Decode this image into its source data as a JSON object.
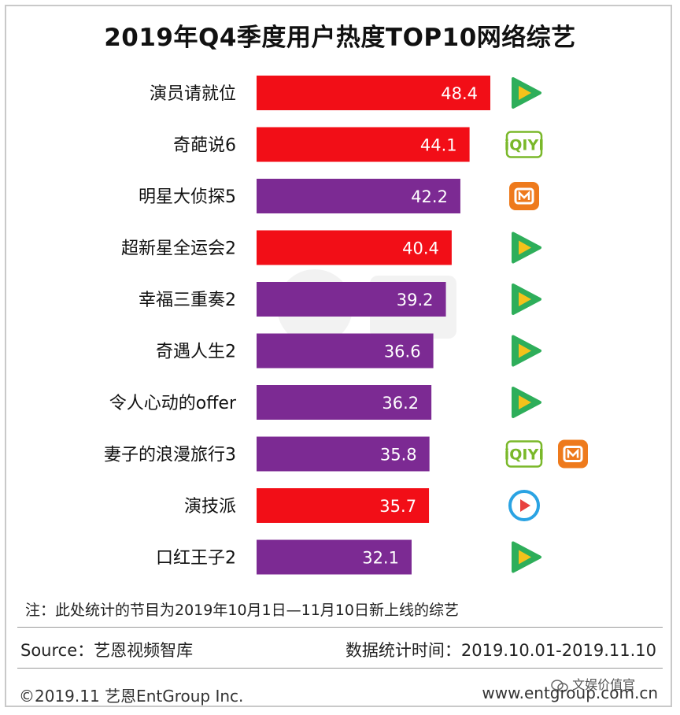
{
  "chart_data": {
    "type": "bar",
    "orientation": "horizontal",
    "title": "2019年Q4季度用户热度TOP10网络综艺",
    "categories": [
      "演员请就位",
      "奇葩说6",
      "明星大侦探5",
      "超新星全运会2",
      "幸福三重奏2",
      "奇遇人生2",
      "令人心动的offer",
      "妻子的浪漫旅行3",
      "演技派",
      "口红王子2"
    ],
    "values": [
      48.4,
      44.1,
      42.2,
      40.4,
      39.2,
      36.6,
      36.2,
      35.8,
      35.7,
      32.1
    ],
    "bar_colors": [
      "#f20e17",
      "#f20e17",
      "#7c2a93",
      "#f20e17",
      "#7c2a93",
      "#7c2a93",
      "#7c2a93",
      "#7c2a93",
      "#f20e17",
      "#7c2a93"
    ],
    "platforms": [
      [
        "tencent"
      ],
      [
        "iqiyi"
      ],
      [
        "mango"
      ],
      [
        "tencent"
      ],
      [
        "tencent"
      ],
      [
        "tencent"
      ],
      [
        "tencent"
      ],
      [
        "iqiyi",
        "mango"
      ],
      [
        "youku"
      ],
      [
        "tencent"
      ]
    ],
    "xlim": [
      0,
      48.4
    ],
    "xlabel": "",
    "ylabel": "",
    "grid": false,
    "legend": "none"
  },
  "colors": {
    "red": "#f20e17",
    "purple": "#7c2a93",
    "tencent": "#2eae5a",
    "tencent_play": "#f4c21b",
    "iqiyi": "#7ab82a",
    "mango": "#ee7a1c",
    "youku": "#2aa3e3"
  },
  "icons": {
    "tencent": "tencent-video-icon",
    "iqiyi": "iqiyi-icon",
    "mango": "mango-tv-icon",
    "youku": "youku-icon"
  },
  "platform_labels": {
    "iqiyi": "iQIYI"
  },
  "note": "注：此处统计的节目为2019年10月1日—11月10日新上线的综艺",
  "footer": {
    "source": "Source：艺恩视频智库",
    "stat_time": "数据统计时间：2019.10.01-2019.11.10",
    "copyright": "©2019.11 艺恩EntGroup Inc.",
    "website": "www.entgroup.com.cn",
    "wechat": "文娱价值官"
  }
}
